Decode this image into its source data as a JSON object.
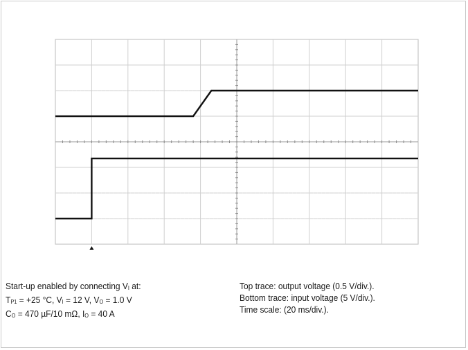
{
  "chart_data": {
    "type": "line",
    "title": "",
    "xlabel": "",
    "ylabel": "",
    "grid": true,
    "divisions": {
      "x": 10,
      "y": 8
    },
    "x_unit": "div",
    "y_unit": "div",
    "xlim": [
      0,
      10
    ],
    "ylim": [
      0,
      8
    ],
    "trigger_marker_x": 1,
    "series": [
      {
        "x": [
          0,
          3.8,
          4.3,
          10
        ],
        "y": [
          5.0,
          5.0,
          6.0,
          6.0
        ]
      },
      {
        "x": [
          0,
          1.0,
          1.0,
          10
        ],
        "y": [
          1.0,
          1.0,
          3.35,
          3.35
        ]
      }
    ]
  },
  "caption": {
    "left": {
      "line1_prefix": "Start-up enabled by connecting V",
      "line1_sub": "I",
      "line1_suffix": " at:",
      "line2_t": "T",
      "line2_t_sub": "P1",
      "line2_a": " = +25 °C, V",
      "line2_vi_sub": "I",
      "line2_b": " = 12 V, V",
      "line2_vo_sub": "O",
      "line2_c": " = 1.0 V",
      "line3_c": "C",
      "line3_c_sub": "O",
      "line3_a": " = 470 µF/10 mΩ, I",
      "line3_io_sub": "O",
      "line3_b": " = 40 A"
    },
    "right": {
      "line1": "Top trace: output voltage (0.5 V/div.).",
      "line2": "Bottom trace: input voltage (5 V/div.).",
      "line3": "Time scale: (20 ms/div.)."
    }
  }
}
